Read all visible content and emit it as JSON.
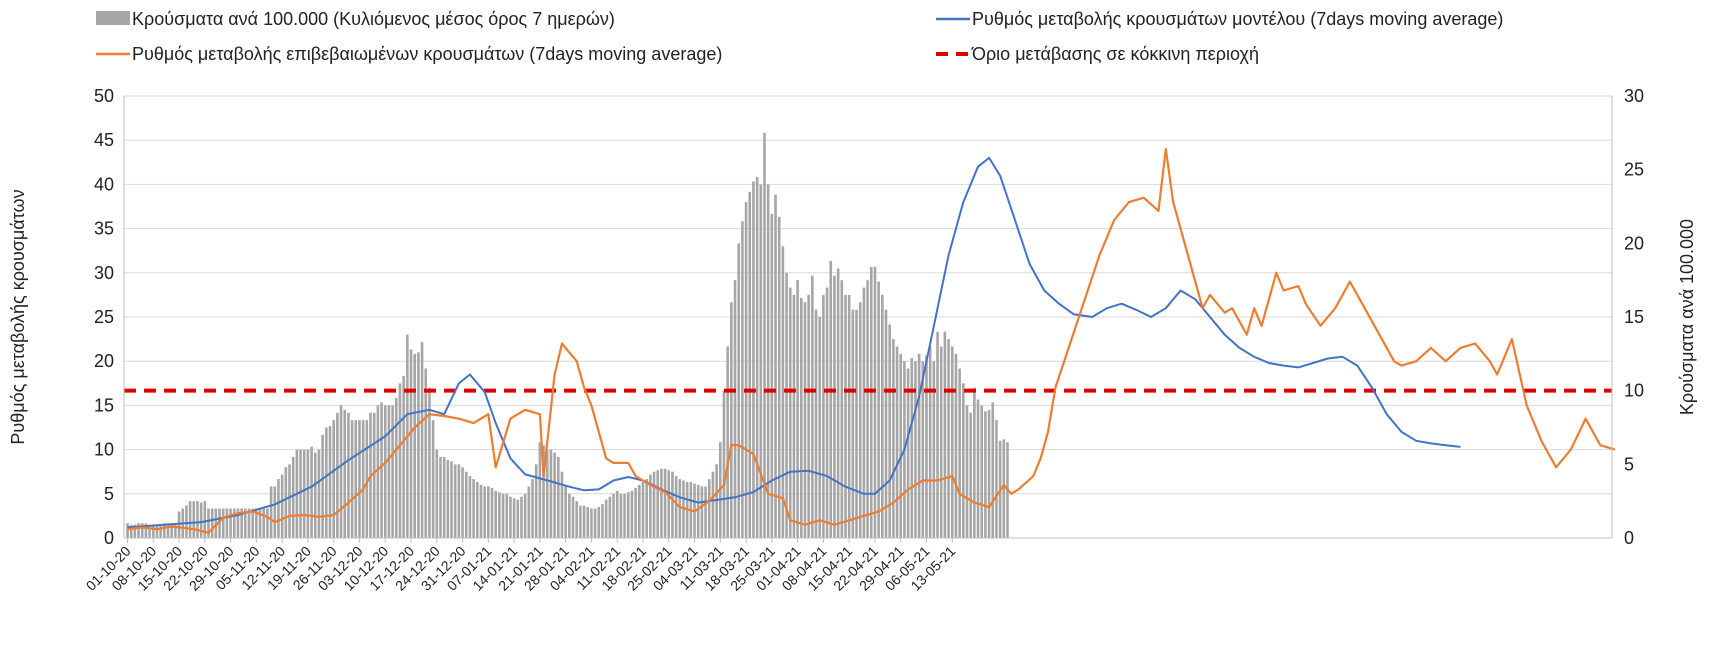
{
  "chart_data": {
    "type": "bar",
    "x_tick_labels": [
      "01-10-20",
      "08-10-20",
      "15-10-20",
      "22-10-20",
      "29-10-20",
      "05-11-20",
      "12-11-20",
      "19-11-20",
      "26-11-20",
      "03-12-20",
      "10-12-20",
      "17-12-20",
      "24-12-20",
      "31-12-20",
      "07-01-21",
      "14-01-21",
      "21-01-21",
      "28-01-21",
      "04-02-21",
      "11-02-21",
      "18-02-21",
      "25-02-21",
      "04-03-21",
      "11-03-21",
      "18-03-21",
      "25-03-21",
      "01-04-21",
      "08-04-21",
      "15-04-21",
      "22-04-21",
      "29-04-21",
      "06-05-21",
      "13-05-21"
    ],
    "left_axis": {
      "label": "Ρυθμός μεταβολής κρουσμάτων",
      "ylim": [
        0,
        50
      ],
      "ticks": [
        0,
        5,
        10,
        15,
        20,
        25,
        30,
        35,
        40,
        45,
        50
      ]
    },
    "right_axis": {
      "label": "Κρούσματα ανά 100.000",
      "ylim": [
        0,
        30
      ],
      "ticks": [
        0,
        5,
        10,
        15,
        20,
        25,
        30
      ]
    },
    "grid": "horizontal",
    "legend_position": "top",
    "threshold_value": 10,
    "series": [
      {
        "name": "Κρούσματα ανά 100.000 (Κυλιόμενος μέσος όρος 7 ημερών)",
        "kind": "bar",
        "axis": "right",
        "color": "#a6a6a6",
        "values": [
          1.0,
          0.9,
          0.9,
          1.0,
          1.0,
          1.0,
          0.9,
          0.9,
          0.9,
          0.9,
          1.0,
          1.0,
          1.0,
          0.9,
          1.8,
          2.0,
          2.2,
          2.5,
          2.5,
          2.5,
          2.4,
          2.5,
          2.0,
          2.0,
          2.0,
          2.0,
          2.0,
          2.0,
          2.0,
          2.0,
          2.0,
          2.0,
          2.0,
          2.0,
          2.0,
          2.0,
          2.0,
          2.0,
          2.0,
          3.5,
          3.5,
          4.0,
          4.3,
          4.8,
          5.0,
          5.5,
          6.0,
          6.0,
          6.0,
          6.0,
          6.2,
          5.8,
          6.0,
          7.0,
          7.5,
          7.6,
          8.0,
          8.5,
          9.0,
          8.7,
          8.5,
          8.0,
          8.0,
          8.0,
          8.0,
          8.0,
          8.5,
          8.5,
          9.0,
          9.2,
          9.0,
          9.0,
          9.0,
          9.5,
          10.5,
          11.0,
          13.8,
          12.8,
          12.5,
          12.6,
          13.3,
          11.5,
          10.2,
          8.0,
          6.0,
          5.5,
          5.5,
          5.3,
          5.2,
          5.0,
          5.0,
          4.8,
          4.5,
          4.2,
          4.0,
          3.8,
          3.6,
          3.5,
          3.5,
          3.4,
          3.2,
          3.1,
          3.0,
          3.0,
          2.8,
          2.7,
          2.6,
          2.8,
          3.0,
          3.5,
          4.0,
          5.0,
          6.5,
          6.3,
          6.0,
          6.0,
          5.8,
          5.5,
          4.5,
          3.5,
          3.0,
          2.8,
          2.5,
          2.2,
          2.2,
          2.1,
          2.0,
          2.0,
          2.1,
          2.3,
          2.6,
          2.8,
          3.0,
          3.2,
          3.0,
          3.0,
          3.1,
          3.2,
          3.4,
          3.6,
          3.8,
          4.0,
          4.3,
          4.5,
          4.6,
          4.7,
          4.7,
          4.6,
          4.5,
          4.2,
          4.0,
          3.9,
          3.8,
          3.8,
          3.7,
          3.6,
          3.5,
          3.5,
          4.0,
          4.5,
          5.0,
          6.5,
          10.0,
          13.0,
          16.0,
          17.5,
          20.0,
          21.5,
          22.8,
          23.5,
          24.2,
          24.5,
          24.0,
          27.5,
          24.0,
          22.0,
          23.3,
          21.8,
          19.8,
          18.0,
          17.0,
          16.5,
          17.5,
          16.3,
          16.0,
          16.5,
          17.8,
          15.5,
          15.0,
          16.5,
          17.0,
          18.8,
          17.8,
          18.3,
          17.5,
          16.5,
          16.5,
          15.5,
          15.5,
          16.0,
          17.0,
          17.5,
          18.4,
          18.4,
          17.4,
          16.5,
          15.5,
          14.5,
          13.5,
          13.0,
          12.5,
          12.0,
          11.5,
          12.2,
          12.0,
          12.5,
          12.0,
          12.4,
          13.0,
          12.0,
          14.0,
          13.0,
          14.0,
          13.5,
          13.0,
          12.5,
          11.5,
          10.5,
          9.0,
          8.5,
          10.2,
          9.4,
          9.0,
          8.6,
          8.7,
          9.2,
          8.0,
          6.6,
          6.7,
          6.5
        ]
      },
      {
        "name": "Ρυθμός μεταβολής κρουσμάτων μοντέλου (7days moving average)",
        "kind": "line",
        "axis": "left",
        "color": "#4472c4",
        "points": [
          [
            0,
            1.2
          ],
          [
            10,
            1.5
          ],
          [
            20,
            1.8
          ],
          [
            30,
            2.6
          ],
          [
            40,
            3.8
          ],
          [
            50,
            5.8
          ],
          [
            60,
            8.8
          ],
          [
            70,
            11.5
          ],
          [
            76,
            14.0
          ],
          [
            82,
            14.5
          ],
          [
            86,
            14.0
          ],
          [
            90,
            17.5
          ],
          [
            93,
            18.5
          ],
          [
            97,
            16.5
          ],
          [
            100,
            13.0
          ],
          [
            104,
            9.0
          ],
          [
            108,
            7.2
          ],
          [
            115,
            6.4
          ],
          [
            120,
            5.8
          ],
          [
            124,
            5.4
          ],
          [
            128,
            5.5
          ],
          [
            132,
            6.5
          ],
          [
            136,
            6.9
          ],
          [
            140,
            6.5
          ],
          [
            145,
            5.5
          ],
          [
            150,
            4.6
          ],
          [
            155,
            4.0
          ],
          [
            160,
            4.3
          ],
          [
            165,
            4.6
          ],
          [
            170,
            5.2
          ],
          [
            175,
            6.5
          ],
          [
            180,
            7.5
          ],
          [
            185,
            7.6
          ],
          [
            190,
            7.0
          ],
          [
            195,
            5.8
          ],
          [
            200,
            5.0
          ],
          [
            203,
            5.0
          ],
          [
            207,
            6.5
          ],
          [
            211,
            10.0
          ],
          [
            215,
            16.0
          ],
          [
            219,
            24.0
          ],
          [
            223,
            32.0
          ],
          [
            227,
            38.0
          ],
          [
            231,
            42.0
          ],
          [
            234,
            43.0
          ],
          [
            237,
            41.0
          ],
          [
            241,
            36.0
          ],
          [
            245,
            31.0
          ],
          [
            249,
            28.0
          ],
          [
            253,
            26.5
          ],
          [
            257,
            25.3
          ],
          [
            262,
            25.0
          ],
          [
            266,
            26.0
          ],
          [
            270,
            26.5
          ],
          [
            274,
            25.8
          ],
          [
            278,
            25.0
          ],
          [
            282,
            26.0
          ],
          [
            286,
            28.0
          ],
          [
            290,
            27.0
          ],
          [
            294,
            25.0
          ],
          [
            298,
            23.0
          ],
          [
            302,
            21.5
          ],
          [
            306,
            20.5
          ],
          [
            310,
            19.8
          ],
          [
            314,
            19.5
          ],
          [
            318,
            19.3
          ],
          [
            322,
            19.8
          ],
          [
            326,
            20.3
          ],
          [
            330,
            20.5
          ],
          [
            334,
            19.5
          ],
          [
            338,
            17.0
          ],
          [
            342,
            14.0
          ],
          [
            346,
            12.0
          ],
          [
            350,
            11.0
          ],
          [
            354,
            10.7
          ],
          [
            358,
            10.5
          ],
          [
            362,
            10.3
          ]
        ]
      },
      {
        "name": "Ρυθμός μεταβολής επιβεβαιωμένων κρουσμάτων (7days moving average)",
        "kind": "line",
        "axis": "left",
        "color": "#ed7d31",
        "points": [
          [
            0,
            1.0
          ],
          [
            4,
            1.2
          ],
          [
            8,
            1.0
          ],
          [
            12,
            1.3
          ],
          [
            18,
            1.0
          ],
          [
            22,
            0.6
          ],
          [
            26,
            2.3
          ],
          [
            30,
            2.8
          ],
          [
            34,
            3.0
          ],
          [
            38,
            2.4
          ],
          [
            40,
            1.8
          ],
          [
            44,
            2.5
          ],
          [
            48,
            2.6
          ],
          [
            52,
            2.4
          ],
          [
            56,
            2.6
          ],
          [
            60,
            4.0
          ],
          [
            64,
            5.5
          ],
          [
            66,
            7.0
          ],
          [
            70,
            8.5
          ],
          [
            74,
            10.5
          ],
          [
            78,
            12.5
          ],
          [
            82,
            14.0
          ],
          [
            86,
            13.8
          ],
          [
            90,
            13.5
          ],
          [
            94,
            13.0
          ],
          [
            98,
            14.0
          ],
          [
            100,
            8.0
          ],
          [
            104,
            13.5
          ],
          [
            108,
            14.5
          ],
          [
            112,
            14.0
          ],
          [
            113,
            7.0
          ],
          [
            116,
            18.5
          ],
          [
            118,
            22.0
          ],
          [
            120,
            21.0
          ],
          [
            122,
            20.0
          ],
          [
            124,
            17.0
          ],
          [
            126,
            15.0
          ],
          [
            128,
            12.0
          ],
          [
            130,
            9.0
          ],
          [
            132,
            8.5
          ],
          [
            136,
            8.5
          ],
          [
            138,
            7.0
          ],
          [
            142,
            6.0
          ],
          [
            146,
            5.2
          ],
          [
            150,
            3.5
          ],
          [
            154,
            3.0
          ],
          [
            158,
            4.2
          ],
          [
            162,
            6.0
          ],
          [
            164,
            10.5
          ],
          [
            166,
            10.5
          ],
          [
            168,
            10.0
          ],
          [
            170,
            9.5
          ],
          [
            174,
            5.0
          ],
          [
            178,
            4.5
          ],
          [
            180,
            2.0
          ],
          [
            184,
            1.5
          ],
          [
            188,
            2.0
          ],
          [
            192,
            1.5
          ],
          [
            196,
            2.0
          ],
          [
            200,
            2.5
          ],
          [
            204,
            3.0
          ],
          [
            208,
            4.0
          ],
          [
            212,
            5.5
          ],
          [
            216,
            6.5
          ],
          [
            220,
            6.5
          ],
          [
            224,
            7.0
          ],
          [
            226,
            5.0
          ],
          [
            230,
            4.0
          ],
          [
            234,
            3.5
          ],
          [
            238,
            6.0
          ],
          [
            240,
            5.0
          ],
          [
            242,
            5.5
          ],
          [
            246,
            7.0
          ],
          [
            248,
            9.0
          ],
          [
            250,
            12.0
          ],
          [
            252,
            17.0
          ],
          [
            256,
            22.0
          ],
          [
            260,
            27.0
          ],
          [
            264,
            32.0
          ],
          [
            268,
            36.0
          ],
          [
            272,
            38.0
          ],
          [
            276,
            38.5
          ],
          [
            280,
            37.0
          ],
          [
            282,
            44.0
          ],
          [
            284,
            38.0
          ],
          [
            288,
            32.0
          ],
          [
            292,
            26.0
          ],
          [
            294,
            27.5
          ],
          [
            298,
            25.5
          ],
          [
            300,
            26.0
          ],
          [
            304,
            23.0
          ],
          [
            306,
            26.0
          ],
          [
            308,
            24.0
          ],
          [
            312,
            30.0
          ],
          [
            314,
            28.0
          ],
          [
            318,
            28.5
          ],
          [
            320,
            26.5
          ],
          [
            324,
            24.0
          ],
          [
            328,
            26.0
          ],
          [
            332,
            29.0
          ],
          [
            336,
            26.0
          ],
          [
            340,
            23.0
          ],
          [
            344,
            20.0
          ],
          [
            346,
            19.5
          ],
          [
            350,
            20.0
          ],
          [
            354,
            21.5
          ],
          [
            358,
            20.0
          ],
          [
            362,
            21.5
          ],
          [
            366,
            22.0
          ],
          [
            370,
            20.0
          ],
          [
            372,
            18.5
          ],
          [
            376,
            22.5
          ],
          [
            380,
            15.0
          ],
          [
            384,
            11.0
          ],
          [
            388,
            8.0
          ],
          [
            392,
            10.0
          ],
          [
            396,
            13.5
          ],
          [
            400,
            10.5
          ],
          [
            404,
            10.0
          ]
        ]
      },
      {
        "name": "Όριο μετάβασης σε κόκκινη περιοχή",
        "kind": "threshold",
        "axis": "right",
        "color": "#e00000"
      }
    ]
  }
}
